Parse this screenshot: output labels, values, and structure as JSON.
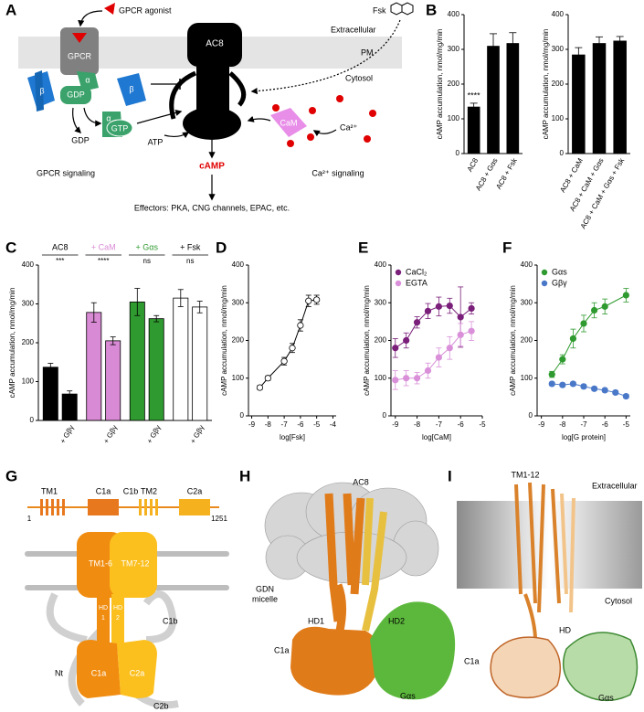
{
  "panels": {
    "labels": {
      "a": "A",
      "b": "B",
      "c": "C",
      "d": "D",
      "e": "E",
      "f": "F",
      "g": "G",
      "h": "H",
      "i": "I"
    },
    "a": {
      "agonist": "GPCR agonist",
      "fsk": "Fsk",
      "extracellular": "Extracellular",
      "pm": "PM",
      "cytosol": "Cytosol",
      "gpcr": "GPCR",
      "beta": "β",
      "gdp_bound": "GDP",
      "alpha": "α",
      "beta2": "β",
      "alpha2": "α",
      "gtp": "GTP",
      "ac8": "AC8",
      "gdp": "GDP",
      "atp": "ATP",
      "cam": "CaM",
      "ca": "Ca²⁺",
      "gpcr_signaling": "GPCR signaling",
      "camp": "cAMP",
      "ca_signaling": "Ca²⁺ signaling",
      "effectors": "Effectors: PKA, CNG channels, EPAC, etc."
    },
    "g": {
      "tm1": "TM1",
      "c1a": "C1a",
      "c1b": "C1b",
      "tm2": "TM2",
      "c2a": "C2a",
      "start": "1",
      "end": "1251",
      "tm1_6": "TM1-6",
      "tm7_12": "TM7-12",
      "hd": "HD",
      "one": "1",
      "hd_b": "HD",
      "two": "2",
      "c1b_loop": "C1b",
      "nt": "Nt",
      "c1a_dom": "C1a",
      "c2a_dom": "C2a",
      "c2b": "C2b"
    },
    "h": {
      "ac8": "AC8",
      "gdn": "GDN",
      "micelle": "micelle",
      "hd1": "HD1",
      "hd2": "HD2",
      "c1a": "C1a",
      "gas": "Gαs"
    },
    "i": {
      "tm": "TM1-12",
      "extracellular": "Extracellular",
      "cytosol": "Cytosol",
      "hd": "HD",
      "c1a": "C1a",
      "gas": "Gαs"
    }
  },
  "chart_data": [
    {
      "type": "bar",
      "categories": [
        "AC8",
        "AC8 + Gαs",
        "AC8 + Fsk"
      ],
      "values": [
        135,
        310,
        318
      ],
      "errors": [
        10,
        35,
        30
      ],
      "color": "#000000",
      "ylim": [
        0,
        400
      ],
      "yticks": [
        0,
        100,
        200,
        300,
        400
      ],
      "ylabel": "cAMP accumulation, nmol/mg/min",
      "annotation": "****"
    },
    {
      "type": "bar",
      "categories": [
        "AC8 + CaM",
        "AC8 + CaM + Gαs",
        "AC8 + CaM + Gαs + Fsk"
      ],
      "values": [
        285,
        318,
        325
      ],
      "errors": [
        20,
        18,
        12
      ],
      "color": "#000000",
      "ylim": [
        0,
        400
      ],
      "yticks": [
        0,
        100,
        200,
        300,
        400
      ],
      "ylabel": "cAMP accumulation, nmol/mg/min"
    },
    {
      "type": "grouped_bar",
      "categories": [
        "AC8",
        "+ CaM",
        "+ Gαs",
        "+ Fsk"
      ],
      "colors": [
        "#000000",
        "#d98ad4",
        "#2f9a2f",
        "#ffffff"
      ],
      "values": [
        137,
        278,
        305,
        315
      ],
      "errors": [
        10,
        25,
        35,
        22
      ],
      "values_gbg": [
        68,
        205,
        262,
        292
      ],
      "errors_gbg": [
        8,
        10,
        8,
        15
      ],
      "bar_label": "+ Gβγ",
      "annotations": [
        "***",
        "****",
        "ns",
        "ns"
      ],
      "ylim": [
        0,
        400
      ],
      "yticks": [
        0,
        100,
        200,
        300,
        400
      ],
      "ylabel": "cAMP accumulation, nmol/mg/min"
    },
    {
      "type": "line",
      "xlabel": "log[Fsk]",
      "xlim": [
        -9.2,
        -3.8
      ],
      "xticks": [
        -9,
        -8,
        -7,
        -6,
        -5,
        -4
      ],
      "ylim": [
        0,
        400
      ],
      "yticks": [
        0,
        100,
        200,
        300,
        400
      ],
      "ylabel": "cAMP accumulation, nmol/mg/min",
      "series": [
        {
          "color": "#ffffff",
          "x": [
            -8.5,
            -8,
            -7,
            -6.5,
            -6,
            -5.5,
            -5
          ],
          "values": [
            75,
            100,
            145,
            180,
            240,
            305,
            308
          ],
          "errors": [
            5,
            6,
            10,
            12,
            15,
            15,
            12
          ]
        }
      ]
    },
    {
      "type": "line",
      "xlabel": "log[CaM]",
      "xlim": [
        -9.2,
        -5
      ],
      "xticks": [
        -9,
        -8,
        -7,
        -6,
        -5
      ],
      "legend": "upper left",
      "ylim": [
        0,
        400
      ],
      "yticks": [
        0,
        100,
        200,
        300,
        400
      ],
      "ylabel": "cAMP accumulation, nmol/mg/min",
      "series": [
        {
          "name": "CaCl₂",
          "color": "#7a1f7a",
          "x": [
            -9,
            -8.5,
            -8,
            -7.5,
            -7,
            -6.5,
            -6,
            -5.5
          ],
          "values": [
            180,
            200,
            248,
            278,
            290,
            292,
            262,
            285
          ],
          "errors": [
            25,
            20,
            15,
            20,
            25,
            20,
            80,
            15
          ]
        },
        {
          "name": "EGTA",
          "color": "#d990d9",
          "x": [
            -9,
            -8.5,
            -8,
            -7.5,
            -7,
            -6.5,
            -6,
            -5.5
          ],
          "values": [
            95,
            100,
            100,
            120,
            155,
            180,
            215,
            225
          ],
          "errors": [
            25,
            20,
            15,
            20,
            25,
            30,
            30,
            25
          ]
        }
      ]
    },
    {
      "type": "line",
      "xlabel": "log[G protein]",
      "xlim": [
        -9.2,
        -4.8
      ],
      "xticks": [
        -9,
        -8,
        -7,
        -6,
        -5
      ],
      "legend": "upper left",
      "ylim": [
        0,
        400
      ],
      "yticks": [
        0,
        100,
        200,
        300,
        400
      ],
      "ylabel": "cAMP accumulation, nmol/mg/min",
      "series": [
        {
          "name": "Gαs",
          "color": "#2f9a2f",
          "x": [
            -8.5,
            -8,
            -7.5,
            -7,
            -6.5,
            -6,
            -5
          ],
          "values": [
            110,
            150,
            205,
            245,
            280,
            290,
            320
          ],
          "errors": [
            8,
            12,
            25,
            22,
            20,
            20,
            18
          ]
        },
        {
          "name": "Gβγ",
          "color": "#4a78c8",
          "x": [
            -8.5,
            -8,
            -7.5,
            -7,
            -6.5,
            -6,
            -5.5,
            -5
          ],
          "values": [
            85,
            82,
            85,
            78,
            72,
            68,
            62,
            52
          ],
          "errors": [
            5,
            5,
            5,
            5,
            5,
            5,
            5,
            5
          ]
        }
      ]
    }
  ]
}
